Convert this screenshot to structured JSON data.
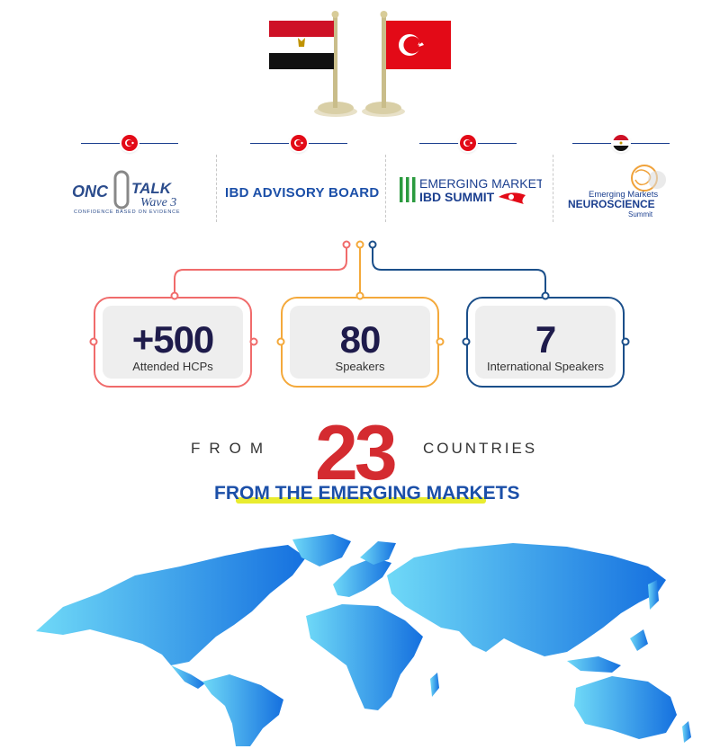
{
  "flags": {
    "left": {
      "country": "Egypt",
      "colors": [
        "#ce1126",
        "#ffffff",
        "#000000"
      ]
    },
    "right": {
      "country": "Turkey",
      "color": "#e30a17"
    }
  },
  "logos": [
    {
      "name": "ONC TALK Wave 3",
      "line1": "ONC",
      "line2": "TALK",
      "line3": "Wave 3",
      "tagline": "CONFIDENCE BASED ON EVIDENCE",
      "flag": "turkey"
    },
    {
      "name": "IBD ADVISORY BOARD",
      "text": "IBD ADVISORY BOARD",
      "flag": "turkey"
    },
    {
      "name": "EMERGING MARKETS IBD SUMMIT",
      "line1": "EMERGING MARKETS",
      "line2": "IBD SUMMIT",
      "flag": "turkey"
    },
    {
      "name": "Emerging Markets NEUROSCIENCE Summit",
      "line1": "Emerging Markets",
      "line2": "NEUROSCIENCE",
      "line3": "Summit",
      "flag": "egypt"
    }
  ],
  "stats": [
    {
      "value": "+500",
      "label": "Attended HCPs",
      "color": "#f06b6b"
    },
    {
      "value": "80",
      "label": "Speakers",
      "color": "#f4a93b"
    },
    {
      "value": "7",
      "label": "International Speakers",
      "color": "#1b4f8a"
    }
  ],
  "countries": {
    "prefix": "FROM",
    "number": "23",
    "suffix": "COUNTRIES",
    "subtitle": "FROM THE EMERGING MARKETS"
  },
  "colors": {
    "accent_red": "#d42b30",
    "accent_blue": "#1b4fa8",
    "highlight_yellow": "#e9ec2f",
    "map_light": "#6fd6f5",
    "map_dark": "#1a78e0"
  }
}
